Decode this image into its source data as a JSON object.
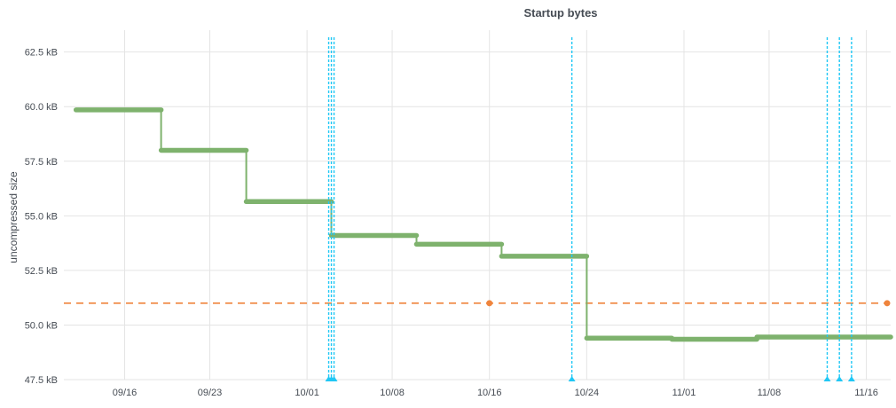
{
  "chart_data": {
    "type": "line",
    "title": "Startup bytes",
    "xlabel": "",
    "ylabel": "uncompressed size",
    "ylim": [
      47.5,
      63.5
    ],
    "xlim": [
      "2024-09-11",
      "2024-11-18"
    ],
    "grid": true,
    "y_ticks": [
      "47.5 kB",
      "50.0 kB",
      "52.5 kB",
      "55.0 kB",
      "57.5 kB",
      "60.0 kB",
      "62.5 kB"
    ],
    "y_tick_values": [
      47.5,
      50.0,
      52.5,
      55.0,
      57.5,
      60.0,
      62.5
    ],
    "x_ticks": [
      "09/16",
      "09/23",
      "10/01",
      "10/08",
      "10/16",
      "10/24",
      "11/01",
      "11/08",
      "11/16"
    ],
    "x_tick_dates": [
      "2024-09-16",
      "2024-09-23",
      "2024-10-01",
      "2024-10-08",
      "2024-10-16",
      "2024-10-24",
      "2024-11-01",
      "2024-11-08",
      "2024-11-16"
    ],
    "series": [
      {
        "color": "#7eb26d",
        "step": true,
        "points": [
          [
            "2024-09-12",
            59.85
          ],
          [
            "2024-09-19",
            59.85
          ],
          [
            "2024-09-19",
            58.0
          ],
          [
            "2024-09-26",
            58.0
          ],
          [
            "2024-09-26",
            55.65
          ],
          [
            "2024-10-03",
            55.65
          ],
          [
            "2024-10-03",
            54.1
          ],
          [
            "2024-10-10",
            54.1
          ],
          [
            "2024-10-10",
            53.7
          ],
          [
            "2024-10-17",
            53.7
          ],
          [
            "2024-10-17",
            53.15
          ],
          [
            "2024-10-24",
            53.15
          ],
          [
            "2024-10-24",
            49.4
          ],
          [
            "2024-10-31",
            49.4
          ],
          [
            "2024-10-31",
            49.35
          ],
          [
            "2024-11-07",
            49.35
          ],
          [
            "2024-11-07",
            49.45
          ],
          [
            "2024-11-18",
            49.45
          ]
        ]
      }
    ],
    "threshold": {
      "value": 51.0,
      "color": "#ef843c",
      "markers": [
        "2024-10-16",
        "2024-11-18"
      ]
    },
    "annotations": {
      "color": "#1fc7f5",
      "dates": [
        "2024-10-03",
        "2024-10-03",
        "2024-10-03",
        "2024-10-23",
        "2024-11-13",
        "2024-11-14",
        "2024-11-15"
      ]
    }
  }
}
